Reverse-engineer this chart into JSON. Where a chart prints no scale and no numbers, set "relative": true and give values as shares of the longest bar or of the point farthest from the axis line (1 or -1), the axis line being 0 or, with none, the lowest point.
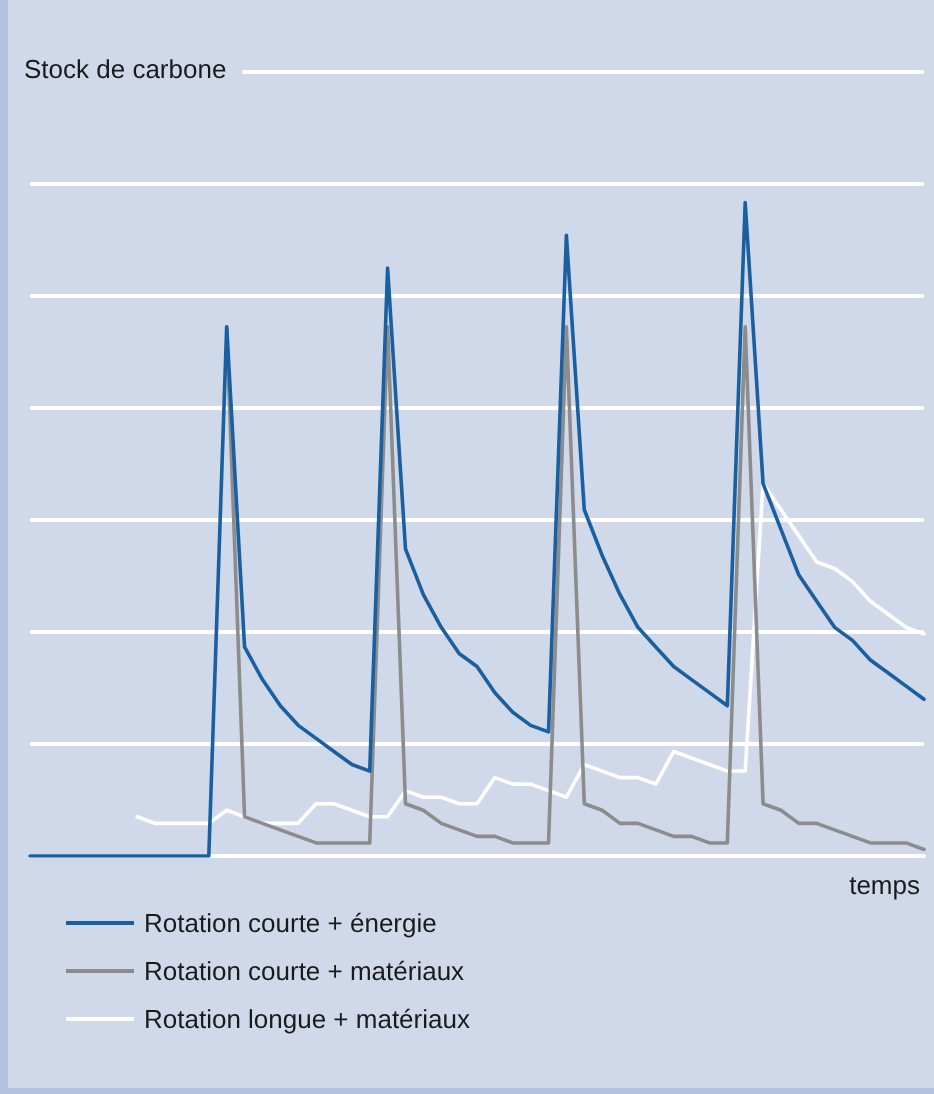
{
  "chart_data": {
    "type": "line",
    "relative": true,
    "title": "Stock de carbone",
    "xlabel": "temps",
    "categories": [
      null,
      null,
      null,
      null,
      null,
      null,
      null,
      null,
      null,
      null,
      null,
      null,
      null,
      null,
      null,
      null,
      null,
      null,
      null,
      null,
      null,
      null,
      null,
      null,
      null,
      null,
      null,
      null,
      null,
      null,
      null,
      null,
      null,
      null,
      null,
      null,
      null,
      null,
      null,
      null,
      null,
      null,
      null,
      null,
      null,
      null,
      null,
      null,
      null,
      null,
      null
    ],
    "series": [
      {
        "name": "Rotation courte + énergie",
        "color": "#1a5fa0",
        "values": [
          0,
          0,
          0,
          0,
          0,
          0,
          0,
          0,
          0,
          0,
          0,
          0.81,
          0.32,
          0.27,
          0.23,
          0.2,
          0.18,
          0.16,
          0.14,
          0.13,
          0.9,
          0.47,
          0.4,
          0.35,
          0.31,
          0.29,
          0.25,
          0.22,
          0.2,
          0.19,
          0.95,
          0.53,
          0.46,
          0.4,
          0.35,
          0.32,
          0.29,
          0.27,
          0.25,
          0.23,
          1,
          0.57,
          0.5,
          0.43,
          0.39,
          0.35,
          0.33,
          0.3,
          0.28,
          0.26,
          0.24
        ]
      },
      {
        "name": "Rotation courte + matériaux",
        "color": "#8c8c8c",
        "values": [
          null,
          null,
          null,
          null,
          null,
          null,
          null,
          null,
          null,
          null,
          null,
          0.81,
          0.06,
          0.05,
          0.04,
          0.03,
          0.02,
          0.02,
          0.02,
          0.02,
          0.81,
          0.08,
          0.07,
          0.05,
          0.04,
          0.03,
          0.03,
          0.02,
          0.02,
          0.02,
          0.81,
          0.08,
          0.07,
          0.05,
          0.05,
          0.04,
          0.03,
          0.03,
          0.02,
          0.02,
          0.81,
          0.08,
          0.07,
          0.05,
          0.05,
          0.04,
          0.03,
          0.02,
          0.02,
          0.02,
          0.01
        ]
      },
      {
        "name": "Rotation longue + matériaux",
        "color": "#ffffff",
        "values": [
          null,
          null,
          null,
          null,
          null,
          null,
          0.06,
          0.05,
          0.05,
          0.05,
          0.05,
          0.07,
          0.06,
          0.05,
          0.05,
          0.05,
          0.08,
          0.08,
          0.07,
          0.06,
          0.06,
          0.1,
          0.09,
          0.09,
          0.08,
          0.08,
          0.12,
          0.11,
          0.11,
          0.1,
          0.09,
          0.14,
          0.13,
          0.12,
          0.12,
          0.11,
          0.16,
          0.15,
          0.14,
          0.13,
          0.13,
          0.57,
          0.53,
          0.49,
          0.45,
          0.44,
          0.42,
          0.39,
          0.37,
          0.35,
          0.34
        ]
      }
    ],
    "grid": "y",
    "legend": "bottom",
    "line_style": "solid"
  }
}
